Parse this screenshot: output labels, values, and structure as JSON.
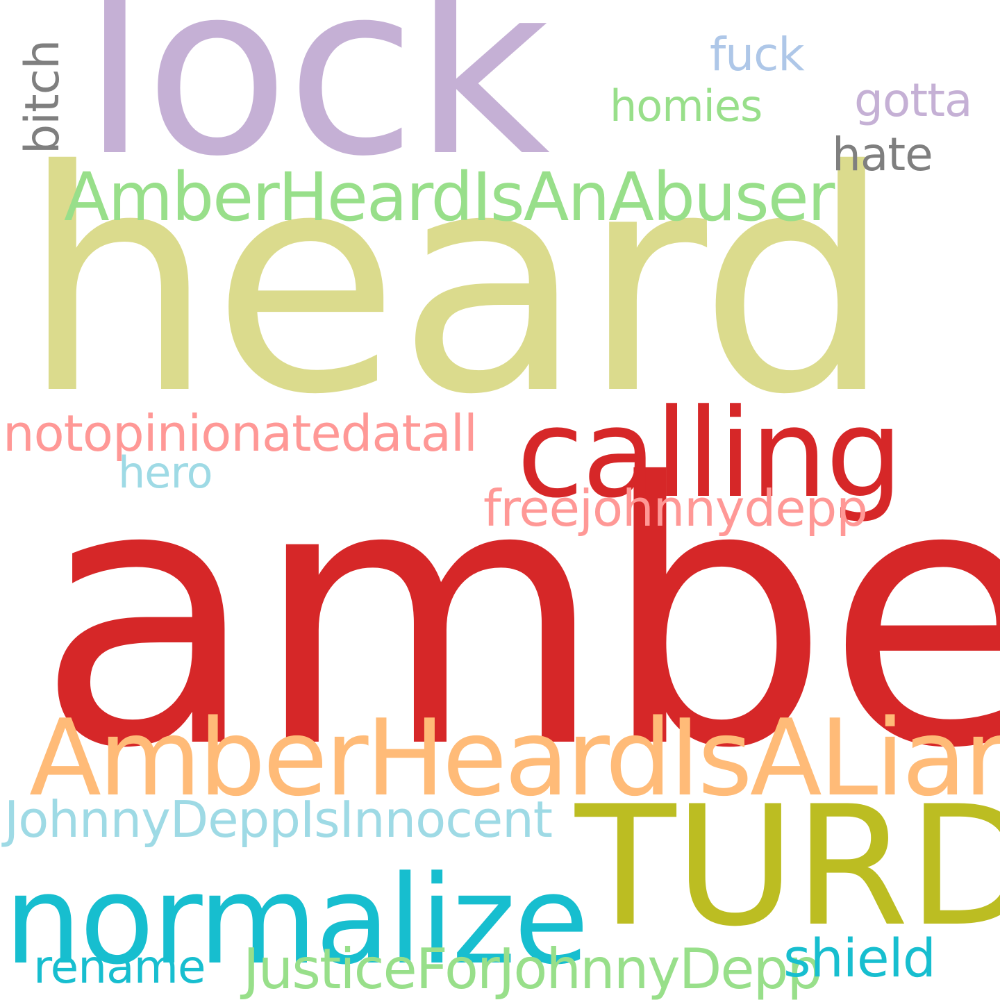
{
  "words": [
    {
      "id": "amber",
      "text": "amber",
      "color": "#d62728",
      "orientation": "horizontal"
    },
    {
      "id": "heard",
      "text": "heard",
      "color": "#dbdb8d",
      "orientation": "horizontal"
    },
    {
      "id": "lock",
      "text": "lock",
      "color": "#c5b0d5",
      "orientation": "horizontal"
    },
    {
      "id": "amberheardisaliar",
      "text": "AmberHeardIsALiar",
      "color": "#ffbb78",
      "orientation": "horizontal"
    },
    {
      "id": "turd",
      "text": "TURD",
      "color": "#bcbd22",
      "orientation": "horizontal"
    },
    {
      "id": "normalize",
      "text": "normalize",
      "color": "#17becf",
      "orientation": "horizontal"
    },
    {
      "id": "calling",
      "text": "calling",
      "color": "#d62728",
      "orientation": "horizontal"
    },
    {
      "id": "amberheardisanabuser",
      "text": "AmberHeardIsAnAbuser",
      "color": "#98df8a",
      "orientation": "horizontal"
    },
    {
      "id": "notopinionatedatall",
      "text": "notopinionatedatall",
      "color": "#ff9896",
      "orientation": "horizontal"
    },
    {
      "id": "freejohnnydepp",
      "text": "freejohnnydepp",
      "color": "#ff9896",
      "orientation": "horizontal"
    },
    {
      "id": "johnnydeppisinnocent",
      "text": "JohnnyDeppIsInnocent",
      "color": "#9edae5",
      "orientation": "horizontal"
    },
    {
      "id": "justiceforjohnnydepp",
      "text": "JusticeForJohnnyDepp",
      "color": "#98df8a",
      "orientation": "horizontal"
    },
    {
      "id": "rename",
      "text": "rename",
      "color": "#17becf",
      "orientation": "horizontal"
    },
    {
      "id": "shield",
      "text": "shield",
      "color": "#17becf",
      "orientation": "horizontal"
    },
    {
      "id": "hero",
      "text": "hero",
      "color": "#9edae5",
      "orientation": "horizontal"
    },
    {
      "id": "homies",
      "text": "homies",
      "color": "#98df8a",
      "orientation": "horizontal"
    },
    {
      "id": "fuck",
      "text": "fuck",
      "color": "#aec7e8",
      "orientation": "horizontal"
    },
    {
      "id": "gotta",
      "text": "gotta",
      "color": "#c5b0d5",
      "orientation": "horizontal"
    },
    {
      "id": "hate",
      "text": "hate",
      "color": "#7f7f7f",
      "orientation": "horizontal"
    },
    {
      "id": "bitch",
      "text": "bitch",
      "color": "#7f7f7f",
      "orientation": "vertical"
    }
  ]
}
